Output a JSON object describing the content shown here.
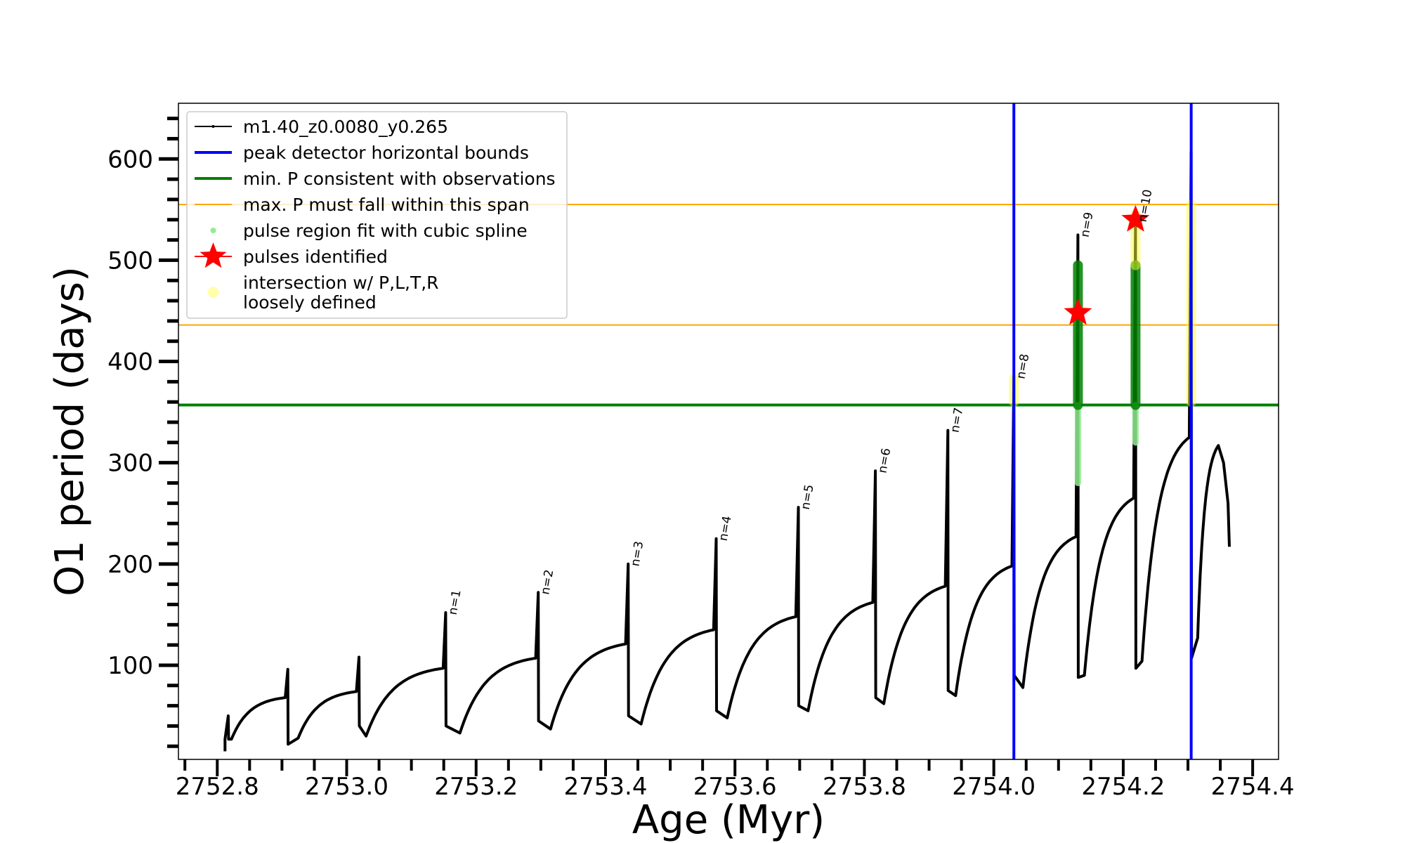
{
  "chart_data": {
    "type": "line",
    "title": "",
    "xlabel": "Age (Myr)",
    "ylabel": "O1 period (days)",
    "xlim": [
      2752.74,
      2754.44
    ],
    "ylim": [
      7,
      655
    ],
    "xticks": [
      2752.8,
      2753.0,
      2753.2,
      2753.4,
      2753.6,
      2753.8,
      2754.0,
      2754.2,
      2754.4
    ],
    "xtick_labels": [
      "2752.8",
      "2753.0",
      "2753.2",
      "2753.4",
      "2753.6",
      "2753.8",
      "2754.0",
      "2754.2",
      "2754.4"
    ],
    "yticks": [
      100,
      200,
      300,
      400,
      500,
      600
    ],
    "ytick_labels": [
      "100",
      "200",
      "300",
      "400",
      "500",
      "600"
    ],
    "grid": false,
    "legend_position": "top-left",
    "legend": [
      {
        "label": "m1.40_z0.0080_y0.265",
        "color": "#000000",
        "kind": "line-marker"
      },
      {
        "label": "peak detector horizontal bounds",
        "color": "#0000ff",
        "kind": "line"
      },
      {
        "label": "min. P consistent with observations",
        "color": "#008000",
        "kind": "line"
      },
      {
        "label": "max. P must fall within this span",
        "color": "#ffa500",
        "kind": "thin-line"
      },
      {
        "label": "pulse region fit with cubic spline",
        "color": "#90ee90",
        "kind": "dot"
      },
      {
        "label": "pulses identified",
        "color": "#ff0000",
        "kind": "star"
      },
      {
        "label": "intersection w/ P,L,T,R",
        "label2": "loosely defined",
        "color": "#ffff99",
        "kind": "circle"
      }
    ],
    "series_track": {
      "name": "m1.40_z0.0080_y0.265",
      "start": {
        "age": 2752.812,
        "low": 15,
        "value": 27
      },
      "cycles": [
        {
          "pulse_age": 2752.817,
          "peak": 50,
          "after": 27,
          "min_age": 2752.822,
          "min": 27,
          "end_age": 2752.905,
          "end_value": 68,
          "label": ""
        },
        {
          "pulse_age": 2752.909,
          "peak": 96,
          "after": 22,
          "min_age": 2752.925,
          "min": 28,
          "end_age": 2753.015,
          "end_value": 74,
          "label": ""
        },
        {
          "pulse_age": 2753.019,
          "peak": 108,
          "after": 40,
          "min_age": 2753.03,
          "min": 30,
          "end_age": 2753.149,
          "end_value": 97,
          "label": ""
        },
        {
          "pulse_age": 2753.153,
          "peak": 152,
          "after": 40,
          "min_age": 2753.175,
          "min": 33,
          "end_age": 2753.292,
          "end_value": 107,
          "label": "n=1"
        },
        {
          "pulse_age": 2753.296,
          "peak": 172,
          "after": 45,
          "min_age": 2753.315,
          "min": 37,
          "end_age": 2753.431,
          "end_value": 121,
          "label": "n=2"
        },
        {
          "pulse_age": 2753.435,
          "peak": 200,
          "after": 50,
          "min_age": 2753.455,
          "min": 42,
          "end_age": 2753.567,
          "end_value": 135,
          "label": "n=3"
        },
        {
          "pulse_age": 2753.571,
          "peak": 225,
          "after": 55,
          "min_age": 2753.588,
          "min": 48,
          "end_age": 2753.694,
          "end_value": 148,
          "label": "n=4"
        },
        {
          "pulse_age": 2753.698,
          "peak": 256,
          "after": 60,
          "min_age": 2753.713,
          "min": 55,
          "end_age": 2753.813,
          "end_value": 162,
          "label": "n=5"
        },
        {
          "pulse_age": 2753.817,
          "peak": 292,
          "after": 68,
          "min_age": 2753.83,
          "min": 62,
          "end_age": 2753.925,
          "end_value": 178,
          "label": "n=6"
        },
        {
          "pulse_age": 2753.929,
          "peak": 332,
          "after": 75,
          "min_age": 2753.941,
          "min": 70,
          "end_age": 2754.028,
          "end_value": 198,
          "label": "n=7"
        },
        {
          "pulse_age": 2754.031,
          "peak": 385,
          "after": 90,
          "min_age": 2754.045,
          "min": 78,
          "end_age": 2754.127,
          "end_value": 227,
          "label": "n=8"
        },
        {
          "pulse_age": 2754.13,
          "peak": 525,
          "after": 88,
          "min_age": 2754.14,
          "min": 90,
          "end_age": 2754.216,
          "end_value": 265,
          "label": "n=9"
        },
        {
          "pulse_age": 2754.219,
          "peak": 540,
          "after": 97,
          "min_age": 2754.229,
          "min": 104,
          "end_age": 2754.302,
          "end_value": 325,
          "label": "n=10"
        },
        {
          "pulse_age": 2754.305,
          "peak": 607,
          "after": 107,
          "min_age": 2754.315,
          "min": 127,
          "end_age": 2754.347,
          "end_value": 317,
          "label": ""
        }
      ],
      "tail": [
        {
          "age": 2754.355,
          "value": 300
        },
        {
          "age": 2754.362,
          "value": 260
        },
        {
          "age": 2754.364,
          "value": 217
        }
      ]
    },
    "peak_detector_bounds": [
      2754.031,
      2754.305
    ],
    "min_P_observed": 357,
    "max_P_span": [
      436,
      555
    ],
    "spline_regions": [
      {
        "age": 2754.13,
        "from": 280,
        "to": 357,
        "kind": "light"
      },
      {
        "age": 2754.13,
        "from": 357,
        "to": 495,
        "kind": "dark"
      },
      {
        "age": 2754.219,
        "from": 320,
        "to": 357,
        "kind": "light"
      },
      {
        "age": 2754.219,
        "from": 357,
        "to": 495,
        "kind": "dark"
      }
    ],
    "loose_regions": [
      {
        "age": 2754.031,
        "from": 360,
        "to": 383
      },
      {
        "age": 2754.219,
        "from": 495,
        "to": 545
      },
      {
        "age": 2754.305,
        "from": 360,
        "to": 555
      }
    ],
    "pulses_identified": [
      {
        "age": 2754.13,
        "period": 448
      },
      {
        "age": 2754.219,
        "period": 540
      }
    ]
  }
}
